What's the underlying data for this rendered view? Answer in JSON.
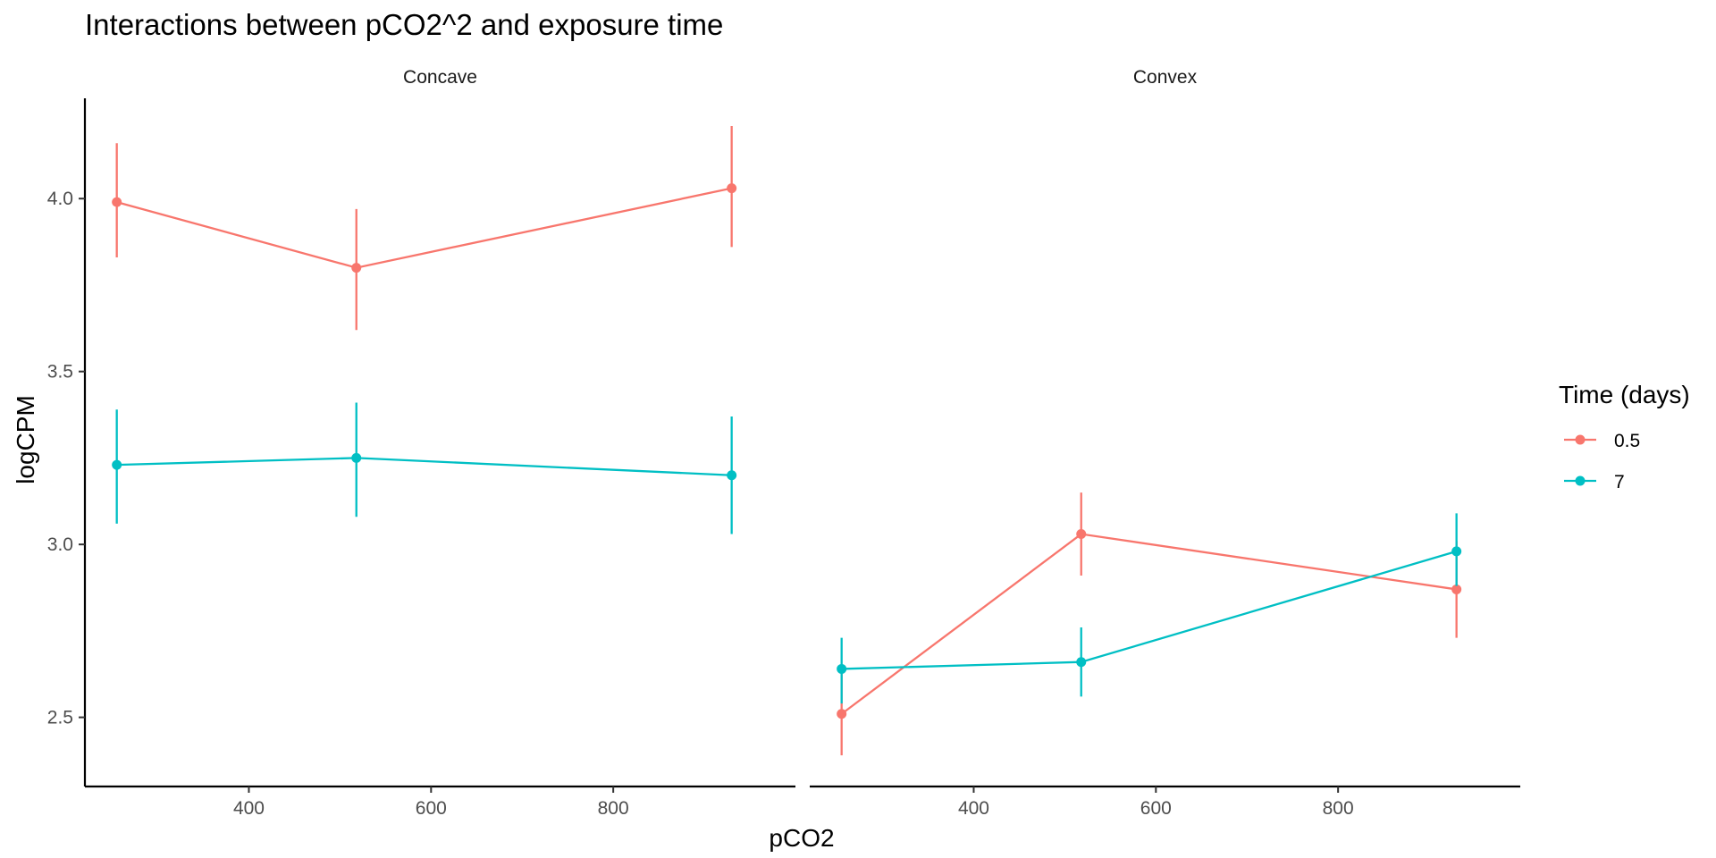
{
  "chart_data": {
    "type": "line",
    "title": "Interactions between pCO2^2 and exposure time",
    "xlabel": "pCO2",
    "ylabel": "logCPM",
    "xlim": [
      220,
      1000
    ],
    "ylim": [
      2.3,
      4.29
    ],
    "x_ticks": [
      400,
      600,
      800
    ],
    "y_ticks": [
      2.5,
      3.0,
      3.5,
      4.0
    ],
    "y_tick_labels": [
      "2.5",
      "3.0",
      "3.5",
      "4.0"
    ],
    "grid": false,
    "legend": {
      "title": "Time (days)",
      "position": "right",
      "entries": [
        {
          "label": "0.5",
          "color": "#F8766D"
        },
        {
          "label": "7",
          "color": "#00BFC4"
        }
      ]
    },
    "panels": [
      {
        "label": "Concave",
        "series": [
          {
            "name": "0.5",
            "color": "#F8766D",
            "points": [
              {
                "x": 255,
                "y": 3.99,
                "ymin": 3.83,
                "ymax": 4.16
              },
              {
                "x": 518,
                "y": 3.8,
                "ymin": 3.62,
                "ymax": 3.97
              },
              {
                "x": 930,
                "y": 4.03,
                "ymin": 3.86,
                "ymax": 4.21
              }
            ]
          },
          {
            "name": "7",
            "color": "#00BFC4",
            "points": [
              {
                "x": 255,
                "y": 3.23,
                "ymin": 3.06,
                "ymax": 3.39
              },
              {
                "x": 518,
                "y": 3.25,
                "ymin": 3.08,
                "ymax": 3.41
              },
              {
                "x": 930,
                "y": 3.2,
                "ymin": 3.03,
                "ymax": 3.37
              }
            ]
          }
        ]
      },
      {
        "label": "Convex",
        "series": [
          {
            "name": "0.5",
            "color": "#F8766D",
            "points": [
              {
                "x": 255,
                "y": 2.51,
                "ymin": 2.39,
                "ymax": 2.63
              },
              {
                "x": 518,
                "y": 3.03,
                "ymin": 2.91,
                "ymax": 3.15
              },
              {
                "x": 930,
                "y": 2.87,
                "ymin": 2.73,
                "ymax": 3.01
              }
            ]
          },
          {
            "name": "7",
            "color": "#00BFC4",
            "points": [
              {
                "x": 255,
                "y": 2.64,
                "ymin": 2.54,
                "ymax": 2.73
              },
              {
                "x": 518,
                "y": 2.66,
                "ymin": 2.56,
                "ymax": 2.76
              },
              {
                "x": 930,
                "y": 2.98,
                "ymin": 2.88,
                "ymax": 3.09
              }
            ]
          }
        ]
      }
    ]
  }
}
